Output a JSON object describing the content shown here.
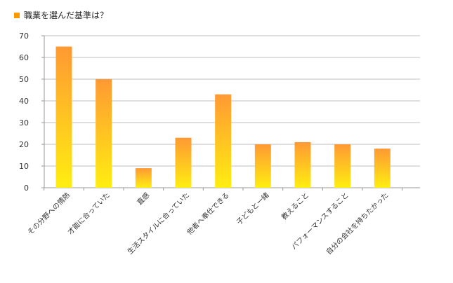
{
  "chart_data": {
    "type": "bar",
    "title": "職業を選んだ基準は？",
    "categories": [
      "その分野への情熱",
      "才能に合っていた",
      "直感",
      "生活スタイルに合っていた",
      "他者へ奉仕できる",
      "子どもと一緒",
      "教えること",
      "パフォーマンスすること",
      "自分の会社を持ちたかった"
    ],
    "values": [
      65,
      50,
      9,
      23,
      43,
      20,
      21,
      20,
      18
    ],
    "ylim": [
      0,
      70
    ],
    "yticks": [
      0,
      10,
      20,
      30,
      40,
      50,
      60,
      70
    ],
    "xlabel": "",
    "ylabel": "",
    "grid": true,
    "colors": {
      "title_marker": "#ff9900",
      "bar_top": "#ff9933",
      "bar_bottom": "#ffee11",
      "grid": "#bfbfbf",
      "axis": "#999999",
      "text": "#333333"
    }
  }
}
